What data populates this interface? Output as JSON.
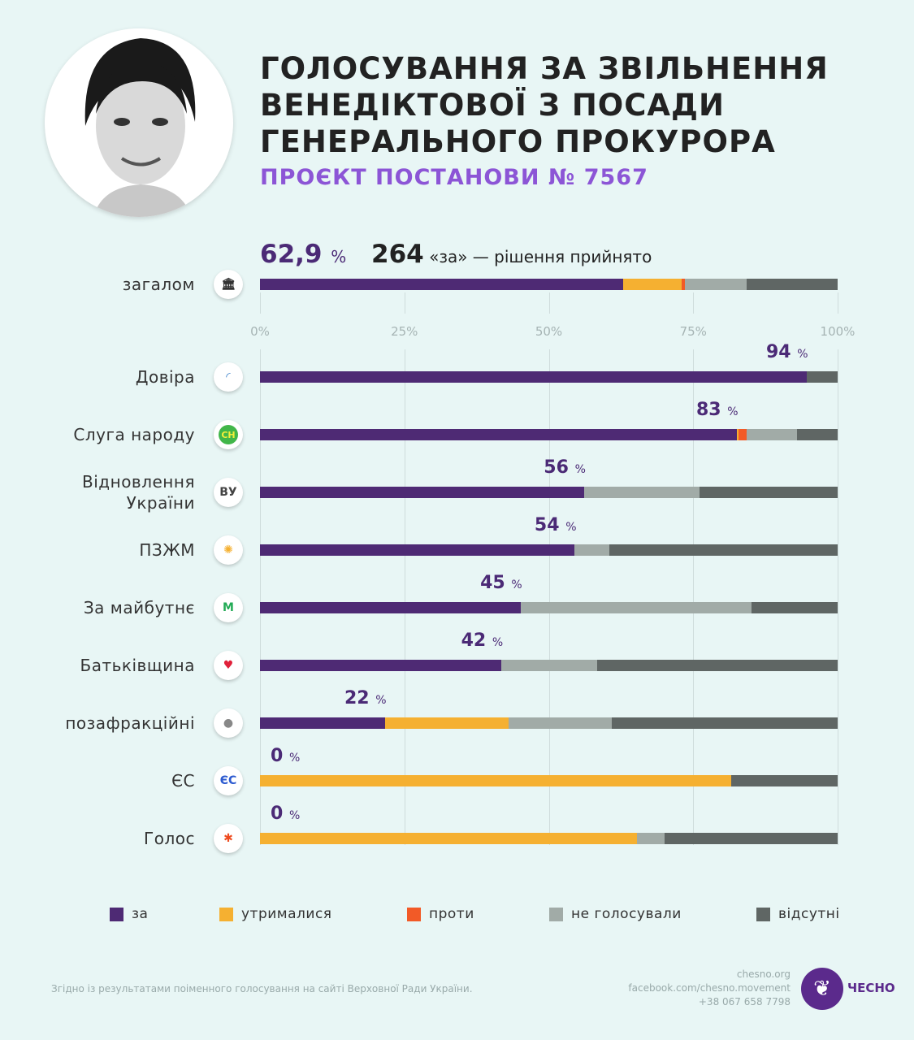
{
  "title": [
    "ГОЛОСУВАННЯ ЗА ЗВІЛЬНЕННЯ",
    "ВЕНЕДІКТОВОЇ З ПОСАДИ",
    "ГЕНЕРАЛЬНОГО ПРОКУРОРА"
  ],
  "subtitle": "ПРОЄКТ ПОСТАНОВИ № 7567",
  "summary": {
    "percent": "62,9",
    "percent_sign": "%",
    "votes": "264",
    "votes_text": "«за» — рішення прийнято"
  },
  "colors": {
    "za": "#4e2a74",
    "utrym": "#f5b031",
    "proty": "#f25a27",
    "ne_holos": "#a1aba7",
    "vidsutni": "#5f6664"
  },
  "chart_data": {
    "type": "bar",
    "stacked": true,
    "orientation": "horizontal",
    "xlim": [
      0,
      100
    ],
    "ticks": [
      "0%",
      "25%",
      "50%",
      "75%",
      "100%"
    ],
    "legend": [
      "за",
      "утримались",
      "проти",
      "не голосували",
      "відсутні"
    ],
    "legend_position": "bottom",
    "overall": {
      "name": "загалом",
      "icon": "parliament-icon",
      "values": [
        62.9,
        10.1,
        0.5,
        10.8,
        15.7
      ]
    },
    "categories": [
      {
        "name": "Довіра",
        "icon": "dovira-icon",
        "glyph": "◜",
        "label": "94",
        "values": [
          94.6,
          0,
          0,
          0,
          5.4
        ]
      },
      {
        "name": "Слуга народу",
        "icon": "sluha-icon",
        "glyph": "СН",
        "label": "83",
        "values": [
          82.5,
          0.4,
          1.4,
          8.7,
          7.0
        ]
      },
      {
        "name": "Відновлення України",
        "icon": "vu-icon",
        "glyph": "ВУ",
        "label": "56",
        "values": [
          56.1,
          0,
          0,
          20.0,
          23.9
        ]
      },
      {
        "name": "ПЗЖМ",
        "icon": "pzzhm-icon",
        "glyph": "✺",
        "label": "54",
        "values": [
          54.5,
          0,
          0,
          6.0,
          39.5
        ]
      },
      {
        "name": "За майбутнє",
        "icon": "za-maibutnie-icon",
        "glyph": "M",
        "label": "45",
        "values": [
          45.1,
          0,
          0,
          40.0,
          14.9
        ]
      },
      {
        "name": "Батьківщина",
        "icon": "heart-icon",
        "glyph": "♥",
        "label": "42",
        "values": [
          41.8,
          0,
          0,
          16.6,
          41.6
        ]
      },
      {
        "name": "позафракційні",
        "icon": "person-icon",
        "glyph": "●",
        "label": "22",
        "values": [
          21.6,
          21.5,
          0,
          17.8,
          39.1
        ]
      },
      {
        "name": "ЄС",
        "icon": "es-icon",
        "glyph": "ЄС",
        "label": "0",
        "values": [
          0,
          81.6,
          0,
          0,
          18.4
        ]
      },
      {
        "name": "Голос",
        "icon": "holos-icon",
        "glyph": "✱",
        "label": "0",
        "values": [
          0,
          65.2,
          0,
          4.9,
          29.9
        ]
      }
    ]
  },
  "legend_labels": [
    "за",
    "утрималися",
    "проти",
    "не голосували",
    "відсутні"
  ],
  "footnote": "Згідно із результатами поіменного голосування на сайті Верховної Ради України.",
  "contacts": [
    "chesno.org",
    "facebook.com/chesno.movement",
    "+38 067 658 7798"
  ],
  "logo_text": "ЧЕСНО"
}
